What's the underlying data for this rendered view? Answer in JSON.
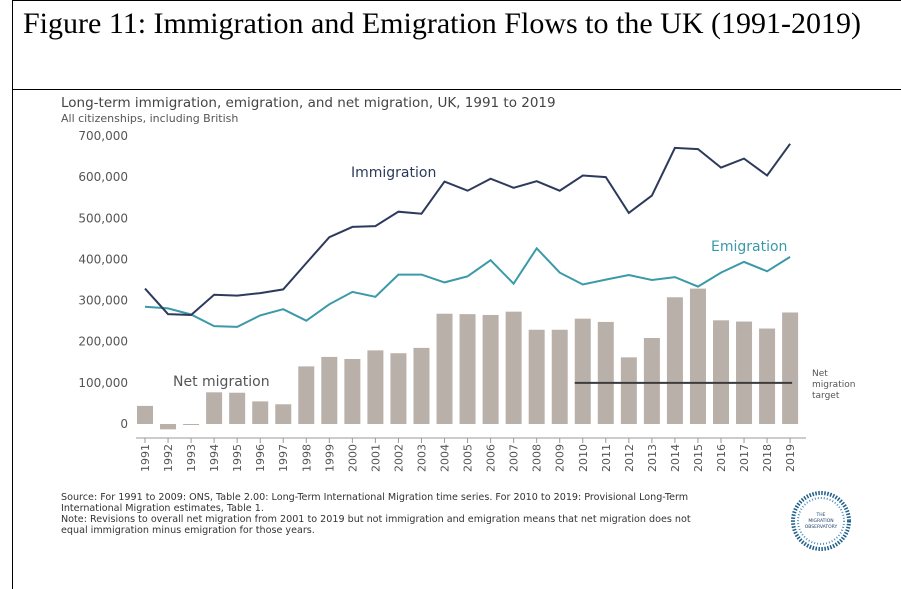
{
  "figure_caption": "Figure 11: Immigration and Emigration Flows to the UK (1991-2019)",
  "colors": {
    "immigration": "#2d3a5c",
    "emigration": "#3a9aa8",
    "net_bar": "#bab0aa",
    "target": "#3c3c3c",
    "axis_text": "#555555",
    "title_text": "#444444"
  },
  "chart_data": {
    "type": "bar",
    "title": "Long-term immigration, emigration, and net migration, UK, 1991 to 2019",
    "subtitle": "All citizenships, including British",
    "ylim": [
      -20000,
      720000
    ],
    "yticks": [
      0,
      100000,
      200000,
      300000,
      400000,
      500000,
      600000,
      700000
    ],
    "ytick_labels": [
      "0",
      "100,000",
      "200,000",
      "300,000",
      "400,000",
      "500,000",
      "600,000",
      "700,000"
    ],
    "categories": [
      "1991",
      "1992",
      "1993",
      "1994",
      "1995",
      "1996",
      "1997",
      "1998",
      "1999",
      "2000",
      "2001",
      "2002",
      "2003",
      "2004",
      "2005",
      "2006",
      "2007",
      "2008",
      "2009",
      "2010",
      "2011",
      "2012",
      "2013",
      "2014",
      "2015",
      "2016",
      "2017",
      "2018",
      "2019"
    ],
    "series": [
      {
        "name": "Immigration",
        "type": "line",
        "values": [
          329000,
          267000,
          265000,
          314000,
          312000,
          318000,
          327000,
          391000,
          454000,
          479000,
          481000,
          516000,
          511000,
          589000,
          567000,
          596000,
          574000,
          590000,
          567000,
          604000,
          600000,
          513000,
          555000,
          671000,
          668000,
          623000,
          645000,
          604000,
          681000
        ]
      },
      {
        "name": "Emigration",
        "type": "line",
        "values": [
          285000,
          281000,
          266000,
          238000,
          236000,
          264000,
          279000,
          251000,
          291000,
          321000,
          309000,
          363000,
          363000,
          344000,
          359000,
          398000,
          341000,
          427000,
          368000,
          339000,
          351000,
          362000,
          350000,
          357000,
          334000,
          368000,
          394000,
          371000,
          406000
        ]
      },
      {
        "name": "Net migration",
        "type": "bar",
        "values": [
          44000,
          -13000,
          -1000,
          77000,
          76000,
          55000,
          48000,
          140000,
          163000,
          158000,
          179000,
          172000,
          185000,
          268000,
          267000,
          265000,
          273000,
          229000,
          229000,
          256000,
          248000,
          162000,
          209000,
          308000,
          329000,
          252000,
          249000,
          232000,
          271000
        ]
      }
    ],
    "annotations": {
      "immigration_label": "Immigration",
      "emigration_label": "Emigration",
      "net_label": "Net migration",
      "target_lines": [
        "Net",
        "migration",
        "target"
      ],
      "target_value": 100000,
      "target_from": "2010",
      "target_to": "2019"
    }
  },
  "source_note": {
    "line1": "Source: For 1991 to 2009: ONS, Table 2.00: Long-Term International Migration time series. For 2010 to 2019: Provisional Long-Term",
    "line2": "International Migration estimates, Table 1.",
    "line3": "Note: Revisions to overall net migration from 2001 to 2019 but not immigration and emigration means that net migration does not",
    "line4": "equal immigration minus emigration for those years."
  },
  "logo": {
    "line1": "THE",
    "line2": "MIGRATION",
    "line3": "OBSERVATORY"
  }
}
